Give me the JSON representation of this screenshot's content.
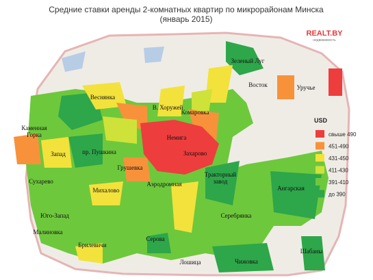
{
  "header": {
    "title": "Средние ставки аренды 2-комнатных квартир по микрорайонам Минска",
    "subtitle": "(январь 2015)"
  },
  "logo": {
    "name": "REALT.BY",
    "tagline": "недвижимость"
  },
  "legend": {
    "title": "USD",
    "items": [
      {
        "label": "свыше 490",
        "color": "#ee3d3d"
      },
      {
        "label": "451-490",
        "color": "#f7923a"
      },
      {
        "label": "431-450",
        "color": "#f3e23b"
      },
      {
        "label": "411-430",
        "color": "#cfe23a"
      },
      {
        "label": "391-410",
        "color": "#6ec83c"
      },
      {
        "label": "до 390",
        "color": "#2ea64a"
      }
    ]
  },
  "districts": [
    {
      "label": "Зеленый Луг"
    },
    {
      "label": "Восток"
    },
    {
      "label": "Уручье"
    },
    {
      "label": "Веснянка"
    },
    {
      "label": "В. Хоружей"
    },
    {
      "label": "Комаровка"
    },
    {
      "label": "Каменная\nГорка"
    },
    {
      "label": "Немига"
    },
    {
      "label": "Запад"
    },
    {
      "label": "пр. Пушкина"
    },
    {
      "label": "Захарово"
    },
    {
      "label": "Грушевка"
    },
    {
      "label": "Тракторный\nзавод"
    },
    {
      "label": "Ангарская"
    },
    {
      "label": "Сухарево"
    },
    {
      "label": "Михалово"
    },
    {
      "label": "Аэродромная"
    },
    {
      "label": "Юго-Запад"
    },
    {
      "label": "Серебрянка"
    },
    {
      "label": "Малиновка"
    },
    {
      "label": "Брилевичи"
    },
    {
      "label": "Серова"
    },
    {
      "label": "Шабаны"
    },
    {
      "label": "Лошица"
    },
    {
      "label": "Чижовка"
    }
  ]
}
